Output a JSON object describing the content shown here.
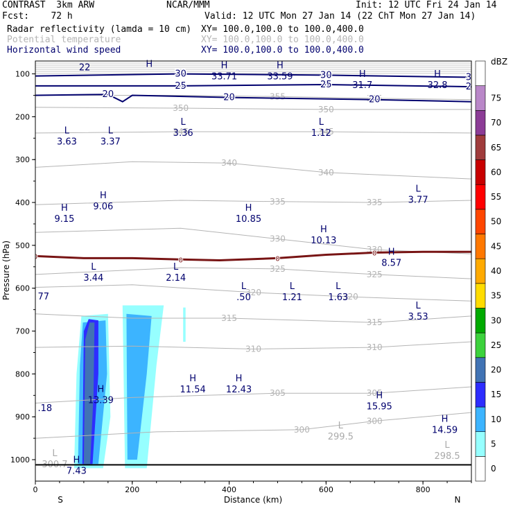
{
  "header": {
    "model": "CONTRAST  3km ARW",
    "org": "NCAR/MMM",
    "init": "Init: 12 UTC Fri 24 Jan 14",
    "fcst": "Fcst:    72 h",
    "valid": "Valid: 12 UTC Mon 27 Jan 14 (22 ChT Mon 27 Jan 14)",
    "fields": [
      {
        "name": "Radar reflectivity (lamda = 10 cm)",
        "xy": "XY= 100.0,100.0 to 100.0,400.0",
        "color": "#000000"
      },
      {
        "name": "Potential temperature",
        "xy": "XY= 100.0,100.0 to 100.0,400.0",
        "color": "#b4b4b4"
      },
      {
        "name": "Horizontal wind speed",
        "xy": "XY= 100.0,100.0 to 100.0,400.0",
        "color": "#00006e"
      }
    ]
  },
  "chart_data": {
    "type": "cross-section",
    "xlabel": "Distance (km)",
    "ylabel": "Pressure (hPa)",
    "xlim": [
      0,
      900
    ],
    "ylim": [
      1050,
      70
    ],
    "x_ticks": [
      0,
      200,
      400,
      600,
      800
    ],
    "y_ticks": [
      100,
      200,
      300,
      400,
      500,
      600,
      700,
      800,
      900,
      1000
    ],
    "x_end_labels": {
      "left": "S",
      "right": "N"
    },
    "colorbar": {
      "unit": "dBZ",
      "levels": [
        0,
        5,
        10,
        15,
        20,
        25,
        30,
        35,
        40,
        45,
        50,
        55,
        60,
        65,
        70,
        75
      ],
      "colors": [
        "#ffffff",
        "#96ffff",
        "#3cb4ff",
        "#2d2dff",
        "#4173b4",
        "#3cd23c",
        "#00aa00",
        "#ffdc00",
        "#ffaa00",
        "#ff7800",
        "#ff4600",
        "#ff0000",
        "#c80000",
        "#a03c3c",
        "#8c3c96",
        "#b987c8"
      ]
    },
    "theta_lines": [
      {
        "label": "355",
        "points": [
          [
            0,
            150
          ],
          [
            300,
            150
          ],
          [
            500,
            153
          ],
          [
            700,
            157
          ],
          [
            900,
            160
          ]
        ]
      },
      {
        "label": "350",
        "points": [
          [
            0,
            178
          ],
          [
            300,
            180
          ],
          [
            600,
            183
          ],
          [
            900,
            183
          ]
        ]
      },
      {
        "label": "345",
        "points": [
          [
            0,
            238
          ],
          [
            300,
            235
          ],
          [
            600,
            235
          ],
          [
            900,
            238
          ]
        ]
      },
      {
        "label": "340",
        "points": [
          [
            0,
            318
          ],
          [
            200,
            305
          ],
          [
            400,
            308
          ],
          [
            600,
            330
          ],
          [
            900,
            345
          ]
        ]
      },
      {
        "label": "335",
        "points": [
          [
            0,
            405
          ],
          [
            300,
            395
          ],
          [
            500,
            398
          ],
          [
            700,
            400
          ],
          [
            900,
            395
          ]
        ]
      },
      {
        "label": "330",
        "points": [
          [
            0,
            470
          ],
          [
            300,
            460
          ],
          [
            500,
            485
          ],
          [
            700,
            510
          ],
          [
            900,
            520
          ]
        ]
      },
      {
        "label": "325",
        "points": [
          [
            0,
            568
          ],
          [
            300,
            552
          ],
          [
            500,
            555
          ],
          [
            700,
            568
          ],
          [
            900,
            578
          ]
        ]
      },
      {
        "label": "320",
        "points": [
          [
            0,
            598
          ],
          [
            200,
            592
          ],
          [
            450,
            610
          ],
          [
            650,
            620
          ],
          [
            900,
            630
          ]
        ]
      },
      {
        "label": "315",
        "points": [
          [
            0,
            660
          ],
          [
            200,
            670
          ],
          [
            400,
            670
          ],
          [
            700,
            680
          ],
          [
            900,
            665
          ]
        ]
      },
      {
        "label": "310",
        "points": [
          [
            0,
            738
          ],
          [
            200,
            735
          ],
          [
            450,
            742
          ],
          [
            700,
            738
          ],
          [
            900,
            725
          ]
        ]
      },
      {
        "label": "305",
        "points": [
          [
            0,
            868
          ],
          [
            200,
            855
          ],
          [
            500,
            845
          ],
          [
            700,
            845
          ],
          [
            900,
            830
          ]
        ]
      },
      {
        "label": "300",
        "points": [
          [
            0,
            950
          ],
          [
            250,
            935
          ],
          [
            550,
            930
          ],
          [
            700,
            910
          ],
          [
            900,
            890
          ]
        ]
      }
    ],
    "zero_line": {
      "label": "0",
      "points": [
        [
          0,
          525
        ],
        [
          100,
          530
        ],
        [
          200,
          530
        ],
        [
          300,
          533
        ],
        [
          380,
          535
        ],
        [
          500,
          530
        ],
        [
          600,
          522
        ],
        [
          700,
          517
        ],
        [
          800,
          515
        ],
        [
          900,
          515
        ]
      ]
    },
    "wind_lines": [
      {
        "label": "30",
        "points": [
          [
            0,
            105
          ],
          [
            300,
            100
          ],
          [
            600,
            103
          ],
          [
            900,
            108
          ]
        ]
      },
      {
        "label": "25",
        "points": [
          [
            0,
            128
          ],
          [
            300,
            128
          ],
          [
            600,
            125
          ],
          [
            900,
            130
          ]
        ]
      },
      {
        "label": "20",
        "points": [
          [
            0,
            150
          ],
          [
            150,
            148
          ],
          [
            180,
            165
          ],
          [
            200,
            150
          ],
          [
            400,
            155
          ],
          [
            700,
            160
          ],
          [
            900,
            165
          ]
        ]
      }
    ],
    "labels": [
      {
        "kind": "H",
        "value": "",
        "x": 235,
        "p": 97
      },
      {
        "kind": "H",
        "value": "33.71",
        "x": 390,
        "p": 100
      },
      {
        "kind": "H",
        "value": "33.59",
        "x": 505,
        "p": 100
      },
      {
        "kind": "H",
        "value": "31.7",
        "x": 675,
        "p": 120
      },
      {
        "kind": "H",
        "value": "32.8",
        "x": 830,
        "p": 120
      },
      {
        "kind": "L",
        "value": "3.63",
        "x": 65,
        "p": 252
      },
      {
        "kind": "L",
        "value": "3.37",
        "x": 155,
        "p": 252
      },
      {
        "kind": "L",
        "value": "3.36",
        "x": 305,
        "p": 232
      },
      {
        "kind": "L",
        "value": "1.12",
        "x": 590,
        "p": 232
      },
      {
        "kind": "L",
        "value": "3.77",
        "x": 790,
        "p": 388
      },
      {
        "kind": "H",
        "value": "9.15",
        "x": 60,
        "p": 432
      },
      {
        "kind": "H",
        "value": "9.06",
        "x": 140,
        "p": 403
      },
      {
        "kind": "H",
        "value": "10.85",
        "x": 440,
        "p": 432
      },
      {
        "kind": "H",
        "value": "10.13",
        "x": 595,
        "p": 482
      },
      {
        "kind": "H",
        "value": "8.57",
        "x": 735,
        "p": 535
      },
      {
        "kind": "L",
        "value": "3.44",
        "x": 120,
        "p": 570
      },
      {
        "kind": "L",
        "value": "2.14",
        "x": 290,
        "p": 570
      },
      {
        "kind": "L",
        "value": ".50",
        "x": 430,
        "p": 615
      },
      {
        "kind": "L",
        "value": "1.21",
        "x": 530,
        "p": 615
      },
      {
        "kind": "L",
        "value": "1.63",
        "x": 625,
        "p": 615
      },
      {
        "kind": "L",
        "value": "3.53",
        "x": 790,
        "p": 660
      },
      {
        "kind": "H",
        "value": "11.54",
        "x": 325,
        "p": 830
      },
      {
        "kind": "H",
        "value": "12.43",
        "x": 420,
        "p": 830
      },
      {
        "kind": "H",
        "value": "13.39",
        "x": 135,
        "p": 855
      },
      {
        "kind": "H",
        "value": "15.95",
        "x": 710,
        "p": 870
      },
      {
        "kind": "H",
        "value": "14.59",
        "x": 845,
        "p": 925
      },
      {
        "kind": "L",
        "value": "299.5",
        "x": 630,
        "p": 940
      },
      {
        "kind": "L",
        "value": "298.5",
        "x": 850,
        "p": 985
      },
      {
        "kind": "L",
        "value": "300.7",
        "x": 40,
        "p": 1005
      },
      {
        "kind": "H",
        "value": "7.43",
        "x": 85,
        "p": 1020
      }
    ],
    "edge_labels": [
      {
        "value": "22",
        "x": 90,
        "p": 85
      },
      {
        "value": "77",
        "x": 5,
        "p": 620
      },
      {
        "value": ".18",
        "x": 5,
        "p": 880
      }
    ],
    "reflectivity_cells": [
      {
        "dbz": 5,
        "points": [
          [
            80,
            1020
          ],
          [
            85,
            800
          ],
          [
            95,
            665
          ],
          [
            150,
            660
          ],
          [
            155,
            900
          ],
          [
            140,
            1020
          ]
        ]
      },
      {
        "dbz": 5,
        "points": [
          [
            185,
            1020
          ],
          [
            180,
            640
          ],
          [
            265,
            640
          ],
          [
            250,
            780
          ],
          [
            230,
            1020
          ]
        ]
      },
      {
        "dbz": 5,
        "points": [
          [
            305,
            645
          ],
          [
            310,
            645
          ],
          [
            310,
            725
          ],
          [
            305,
            725
          ]
        ]
      },
      {
        "dbz": 10,
        "points": [
          [
            88,
            1010
          ],
          [
            92,
            780
          ],
          [
            98,
            680
          ],
          [
            145,
            675
          ],
          [
            148,
            800
          ],
          [
            130,
            1010
          ]
        ]
      },
      {
        "dbz": 10,
        "points": [
          [
            190,
            1000
          ],
          [
            188,
            660
          ],
          [
            240,
            665
          ],
          [
            230,
            800
          ],
          [
            210,
            1000
          ]
        ]
      },
      {
        "dbz": 15,
        "points": [
          [
            97,
            1010
          ],
          [
            100,
            700
          ],
          [
            110,
            672
          ],
          [
            130,
            675
          ],
          [
            130,
            800
          ],
          [
            118,
            1010
          ]
        ]
      },
      {
        "dbz": 20,
        "points": [
          [
            100,
            1010
          ],
          [
            103,
            720
          ],
          [
            112,
            680
          ],
          [
            122,
            680
          ],
          [
            120,
            850
          ],
          [
            113,
            1010
          ]
        ]
      }
    ],
    "ground_p": 1012
  }
}
